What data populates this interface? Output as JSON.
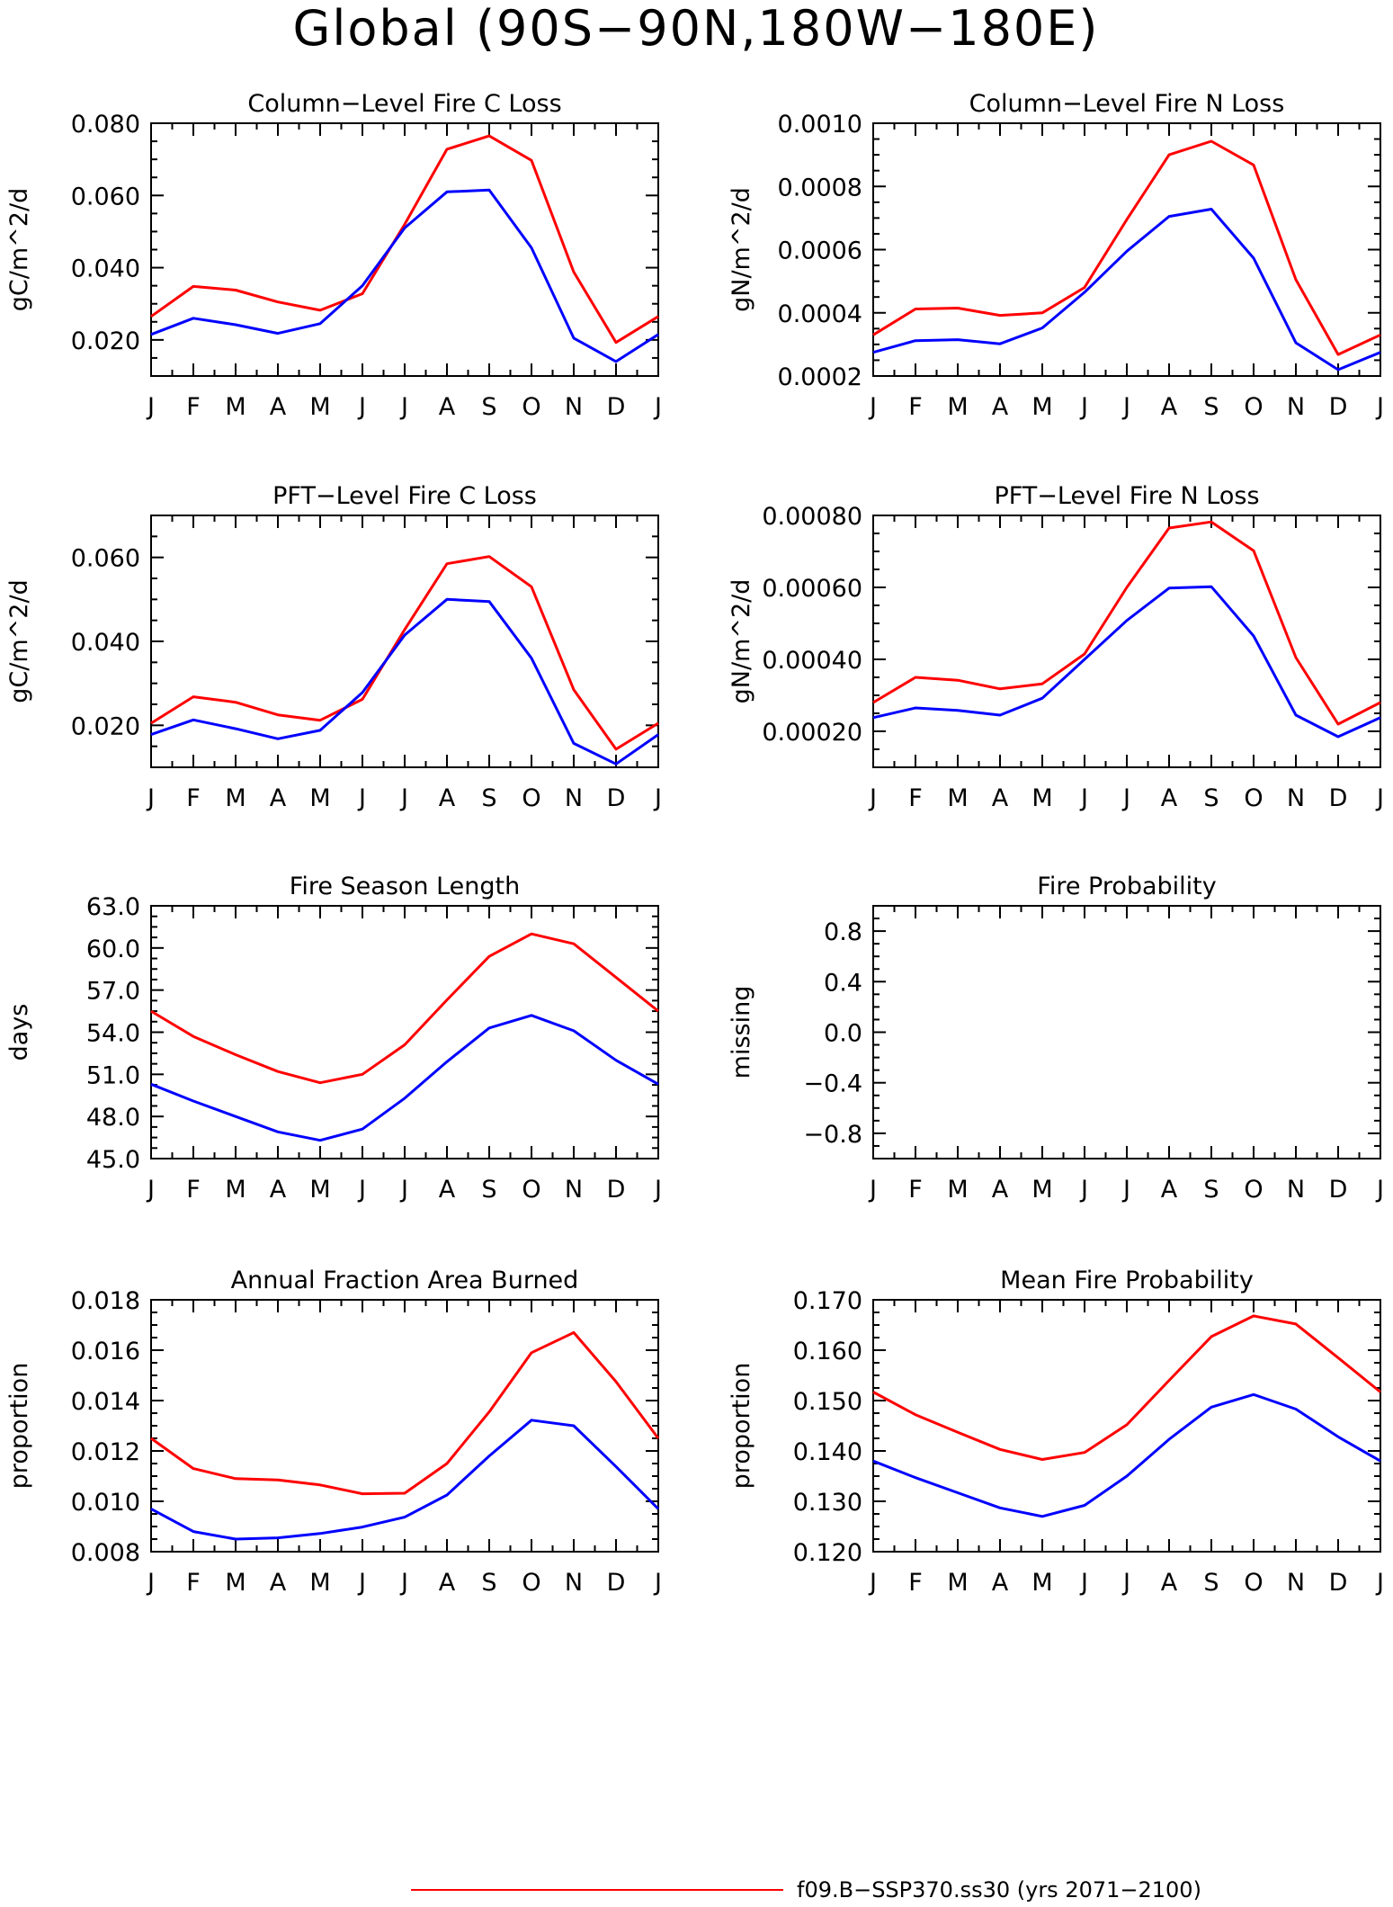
{
  "title": "Global (90S−90N,180W−180E)",
  "colors": {
    "series_red": "#ff0000",
    "series_blue": "#0000ff",
    "axis": "#000000"
  },
  "legend": {
    "entries": [
      {
        "label": "f09.B−SSP370.ss30 (yrs 2071−2100)",
        "color": "#ff0000"
      }
    ]
  },
  "chart_data": [
    {
      "type": "line",
      "title": "Column−Level Fire C Loss",
      "ylabel": "gC/m^2/d",
      "categories": [
        "J",
        "F",
        "M",
        "A",
        "M",
        "J",
        "J",
        "A",
        "S",
        "O",
        "N",
        "D",
        "J"
      ],
      "ylim": [
        0.01,
        0.08
      ],
      "yticks": [
        0.02,
        0.04,
        0.06,
        0.08
      ],
      "yticklabels": [
        "0.020",
        "0.040",
        "0.060",
        "0.080"
      ],
      "series": [
        {
          "color": "#ff0000",
          "values": [
            0.0265,
            0.0348,
            0.0338,
            0.0305,
            0.0282,
            0.0328,
            0.052,
            0.0728,
            0.0765,
            0.0697,
            0.0388,
            0.0193,
            0.0265
          ]
        },
        {
          "color": "#0000ff",
          "values": [
            0.0215,
            0.026,
            0.0242,
            0.0218,
            0.0245,
            0.035,
            0.051,
            0.061,
            0.0615,
            0.0455,
            0.0205,
            0.014,
            0.0215
          ]
        }
      ]
    },
    {
      "type": "line",
      "title": "Column−Level Fire N Loss",
      "ylabel": "gN/m^2/d",
      "categories": [
        "J",
        "F",
        "M",
        "A",
        "M",
        "J",
        "J",
        "A",
        "S",
        "O",
        "N",
        "D",
        "J"
      ],
      "ylim": [
        0.0002,
        0.001
      ],
      "yticks": [
        0.0002,
        0.0004,
        0.0006,
        0.0008,
        0.001
      ],
      "yticklabels": [
        "0.0002",
        "0.0004",
        "0.0006",
        "0.0008",
        "0.0010"
      ],
      "series": [
        {
          "color": "#ff0000",
          "values": [
            0.00033,
            0.000412,
            0.000415,
            0.000392,
            0.0004,
            0.00048,
            0.000695,
            0.0009,
            0.000943,
            0.000868,
            0.000505,
            0.000268,
            0.00033
          ]
        },
        {
          "color": "#0000ff",
          "values": [
            0.000275,
            0.000312,
            0.000315,
            0.000302,
            0.000352,
            0.000465,
            0.000595,
            0.000705,
            0.000728,
            0.000573,
            0.000305,
            0.00022,
            0.000275
          ]
        }
      ]
    },
    {
      "type": "line",
      "title": "PFT−Level Fire C Loss",
      "ylabel": "gC/m^2/d",
      "categories": [
        "J",
        "F",
        "M",
        "A",
        "M",
        "J",
        "J",
        "A",
        "S",
        "O",
        "N",
        "D",
        "J"
      ],
      "ylim": [
        0.01,
        0.07
      ],
      "yticks": [
        0.02,
        0.04,
        0.06
      ],
      "yticklabels": [
        "0.020",
        "0.040",
        "0.060"
      ],
      "series": [
        {
          "color": "#ff0000",
          "values": [
            0.0205,
            0.0268,
            0.0255,
            0.0225,
            0.0212,
            0.0262,
            0.0428,
            0.0585,
            0.0602,
            0.053,
            0.0285,
            0.0143,
            0.0205
          ]
        },
        {
          "color": "#0000ff",
          "values": [
            0.0178,
            0.0213,
            0.0192,
            0.0168,
            0.0188,
            0.0278,
            0.0415,
            0.05,
            0.0495,
            0.036,
            0.0157,
            0.0108,
            0.0178
          ]
        }
      ]
    },
    {
      "type": "line",
      "title": "PFT−Level Fire N Loss",
      "ylabel": "gN/m^2/d",
      "categories": [
        "J",
        "F",
        "M",
        "A",
        "M",
        "J",
        "J",
        "A",
        "S",
        "O",
        "N",
        "D",
        "J"
      ],
      "ylim": [
        0.0001,
        0.0008
      ],
      "yticks": [
        0.0002,
        0.0004,
        0.0006,
        0.0008
      ],
      "yticklabels": [
        "0.00020",
        "0.00040",
        "0.00060",
        "0.00080"
      ],
      "series": [
        {
          "color": "#ff0000",
          "values": [
            0.00028,
            0.00035,
            0.000342,
            0.000318,
            0.000332,
            0.000415,
            0.0006,
            0.000765,
            0.000782,
            0.000702,
            0.000405,
            0.00022,
            0.00028
          ]
        },
        {
          "color": "#0000ff",
          "values": [
            0.000238,
            0.000265,
            0.000258,
            0.000245,
            0.000292,
            0.0004,
            0.000508,
            0.000598,
            0.000602,
            0.000465,
            0.000245,
            0.000185,
            0.000238
          ]
        }
      ]
    },
    {
      "type": "line",
      "title": "Fire Season Length",
      "ylabel": "days",
      "categories": [
        "J",
        "F",
        "M",
        "A",
        "M",
        "J",
        "J",
        "A",
        "S",
        "O",
        "N",
        "D",
        "J"
      ],
      "ylim": [
        45,
        63
      ],
      "yticks": [
        45,
        48,
        51,
        54,
        57,
        60,
        63
      ],
      "yticklabels": [
        "45.0",
        "48.0",
        "51.0",
        "54.0",
        "57.0",
        "60.0",
        "63.0"
      ],
      "series": [
        {
          "color": "#ff0000",
          "values": [
            55.5,
            53.7,
            52.4,
            51.2,
            50.4,
            51.0,
            53.1,
            56.3,
            59.4,
            61.0,
            60.3,
            57.9,
            55.5
          ]
        },
        {
          "color": "#0000ff",
          "values": [
            50.3,
            49.1,
            48.0,
            46.9,
            46.3,
            47.1,
            49.3,
            51.9,
            54.3,
            55.2,
            54.1,
            52.0,
            50.3
          ]
        }
      ]
    },
    {
      "type": "line",
      "title": "Fire Probability",
      "ylabel": "missing",
      "categories": [
        "J",
        "F",
        "M",
        "A",
        "M",
        "J",
        "J",
        "A",
        "S",
        "O",
        "N",
        "D",
        "J"
      ],
      "ylim": [
        -1.0,
        1.0
      ],
      "yticks": [
        -0.8,
        -0.4,
        0.0,
        0.4,
        0.8
      ],
      "yticklabels": [
        "−0.8",
        "−0.4",
        "0.0",
        "0.4",
        "0.8"
      ],
      "series": []
    },
    {
      "type": "line",
      "title": "Annual Fraction Area Burned",
      "ylabel": "proportion",
      "categories": [
        "J",
        "F",
        "M",
        "A",
        "M",
        "J",
        "J",
        "A",
        "S",
        "O",
        "N",
        "D",
        "J"
      ],
      "ylim": [
        0.008,
        0.018
      ],
      "yticks": [
        0.008,
        0.01,
        0.012,
        0.014,
        0.016,
        0.018
      ],
      "yticklabels": [
        "0.008",
        "0.010",
        "0.012",
        "0.014",
        "0.016",
        "0.018"
      ],
      "series": [
        {
          "color": "#ff0000",
          "values": [
            0.0125,
            0.0113,
            0.0109,
            0.01085,
            0.01065,
            0.0103,
            0.01032,
            0.0115,
            0.01355,
            0.0159,
            0.0167,
            0.01475,
            0.0125
          ]
        },
        {
          "color": "#0000ff",
          "values": [
            0.0097,
            0.0088,
            0.0085,
            0.00855,
            0.00872,
            0.00898,
            0.00937,
            0.01025,
            0.0118,
            0.01322,
            0.013,
            0.01138,
            0.0097
          ]
        }
      ]
    },
    {
      "type": "line",
      "title": "Mean Fire Probability",
      "ylabel": "proportion",
      "categories": [
        "J",
        "F",
        "M",
        "A",
        "M",
        "J",
        "J",
        "A",
        "S",
        "O",
        "N",
        "D",
        "J"
      ],
      "ylim": [
        0.12,
        0.17
      ],
      "yticks": [
        0.12,
        0.13,
        0.14,
        0.15,
        0.16,
        0.17
      ],
      "yticklabels": [
        "0.120",
        "0.130",
        "0.140",
        "0.150",
        "0.160",
        "0.170"
      ],
      "series": [
        {
          "color": "#ff0000",
          "values": [
            0.1517,
            0.1472,
            0.1437,
            0.1403,
            0.1383,
            0.1397,
            0.1452,
            0.154,
            0.1627,
            0.1668,
            0.1652,
            0.1585,
            0.1517
          ]
        },
        {
          "color": "#0000ff",
          "values": [
            0.138,
            0.1347,
            0.1317,
            0.1287,
            0.127,
            0.1292,
            0.135,
            0.1423,
            0.1487,
            0.1512,
            0.1483,
            0.1428,
            0.138
          ]
        }
      ]
    }
  ]
}
